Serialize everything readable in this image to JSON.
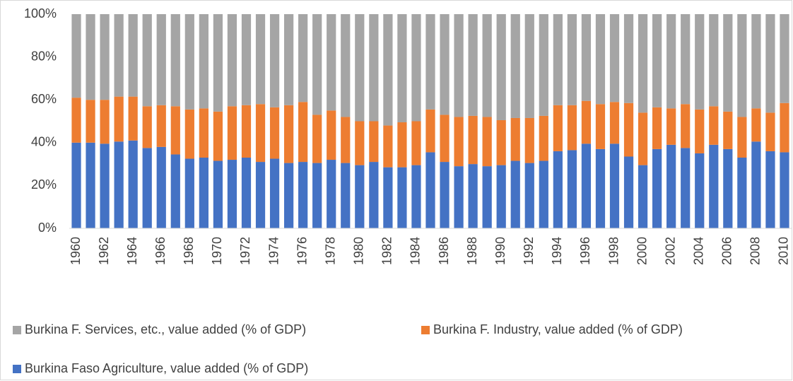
{
  "chart_data": {
    "type": "stacked-bar",
    "categories": [
      "1960",
      null,
      "1962",
      null,
      "1964",
      null,
      "1966",
      null,
      "1968",
      null,
      "1970",
      null,
      "1972",
      null,
      "1974",
      null,
      "1976",
      null,
      "1978",
      null,
      "1980",
      null,
      "1982",
      null,
      "1984",
      null,
      "1986",
      null,
      "1988",
      null,
      "1990",
      null,
      "1992",
      null,
      "1994",
      null,
      "1996",
      null,
      "1998",
      null,
      "2000",
      null,
      "2002",
      null,
      "2004",
      null,
      "2006",
      null,
      "2008",
      null,
      "2010"
    ],
    "series": [
      {
        "name": "Burkina F. Services, etc., value added (% of GDP)",
        "color": "#a5a5a5",
        "values": [
          39,
          40,
          40,
          38.5,
          38.5,
          43,
          42.5,
          43,
          44.5,
          44,
          45.5,
          43,
          42.5,
          42,
          43.5,
          42.5,
          41,
          47,
          45,
          48,
          50,
          50,
          52,
          50.5,
          50,
          44.5,
          47,
          48,
          47.5,
          48,
          49.5,
          48.5,
          48.5,
          47.5,
          42.5,
          42.5,
          40.5,
          42,
          41,
          41.5,
          46,
          43.5,
          44,
          42,
          44.5,
          43,
          45.5,
          48,
          44,
          46,
          41.5
        ]
      },
      {
        "name": "Burkina F. Industry, value added (% of GDP)",
        "color": "#ed7d31",
        "values": [
          21,
          20,
          20.5,
          21,
          20.5,
          19.5,
          19.5,
          22.5,
          23,
          23,
          23,
          25,
          24.5,
          27,
          24,
          27,
          28,
          22.5,
          23,
          21.5,
          20.5,
          19,
          19.5,
          21,
          20.5,
          20,
          22,
          23,
          22.5,
          23,
          21,
          20,
          21,
          21,
          21.5,
          21,
          20,
          21,
          19.5,
          25,
          24.5,
          19.5,
          17,
          20.5,
          20.5,
          18,
          17.5,
          19,
          15.5,
          18,
          23
        ]
      },
      {
        "name": "Burkina Faso Agriculture, value added (% of GDP)",
        "color": "#4472c4",
        "values": [
          40,
          40,
          39.5,
          40.5,
          41,
          37.5,
          38,
          34.5,
          32.5,
          33,
          31.5,
          32,
          33,
          31,
          32.5,
          30.5,
          31,
          30.5,
          32,
          30.5,
          29.5,
          31,
          28.5,
          28.5,
          29.5,
          35.5,
          31,
          29,
          30,
          29,
          29.5,
          31.5,
          30.5,
          31.5,
          36,
          36.5,
          39.5,
          37,
          39.5,
          33.5,
          29.5,
          37,
          39,
          37.5,
          35,
          39,
          37,
          33,
          40.5,
          36,
          35.5
        ]
      }
    ],
    "ylim": [
      0,
      100
    ],
    "yticks": [
      {
        "value": 0,
        "label": "0%"
      },
      {
        "value": 20,
        "label": "20%"
      },
      {
        "value": 40,
        "label": "40%"
      },
      {
        "value": 60,
        "label": "60%"
      },
      {
        "value": 80,
        "label": "80%"
      },
      {
        "value": 100,
        "label": "100%"
      }
    ],
    "grid": false
  }
}
